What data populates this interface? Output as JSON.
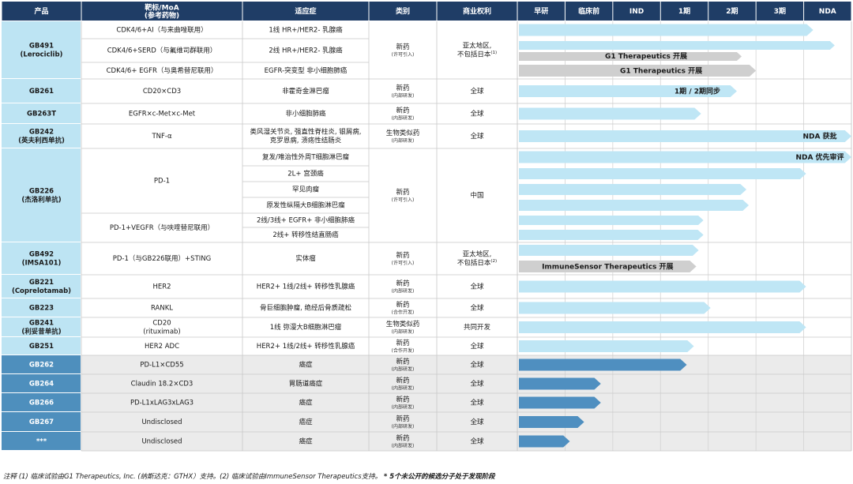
{
  "colors": {
    "header": "#1f3d66",
    "product_light": "#bde4f3",
    "product_dark": "#4e8fbd",
    "row_alt": "#ebebeb",
    "bar_light": "#bfe6f5",
    "bar_dark": "#4f8fc0",
    "bar_gray": "#cfcfcf"
  },
  "headers": {
    "product": "产品",
    "target": "靶标/MoA",
    "target_sub": "(参考药物)",
    "indication": "适应症",
    "category": "类别",
    "rights": "商业权利",
    "phases": [
      "早研",
      "临床前",
      "IND",
      "1期",
      "2期",
      "3期",
      "NDA"
    ]
  },
  "rows": [
    {
      "target": "CDK4/6+AI（与来曲唑联用）",
      "indication": "1线 HR+/HER2-  乳腺癌",
      "bar_end": 6.2,
      "bar": "light"
    },
    {
      "target": "CDK4/6+SERD（与氟维司群联用）",
      "indication": "2线 HR+/HER2-  乳腺癌",
      "bar_end": 6.65,
      "bar": "light",
      "bar2_end": 4.7,
      "bar2": "gray",
      "bar2_label": "G1 Therapeutics 开展"
    },
    {
      "target": "CDK4/6+ EGFR（与奥希替尼联用）",
      "indication": "EGFR-突变型 非小细胞肺癌",
      "bar_end": 5.0,
      "bar": "gray",
      "bar_label": "G1 Therapeutics 开展"
    },
    {
      "target": "CD20×CD3",
      "indication": "非霍奇金淋巴瘤",
      "bar_end": 4.6,
      "bar": "light",
      "bar_label": "1期 / 2期同步"
    },
    {
      "target": "EGFR×c-Met×c-Met",
      "indication": "非小细胞肺癌",
      "bar_end": 3.85,
      "bar": "light"
    },
    {
      "target": "TNF-α",
      "indication_lines": [
        "类风湿关节炎, 强直性脊柱炎, 银屑病,",
        "克罗恩病, 溃疡性结肠炎"
      ],
      "bar_end": 7.0,
      "bar": "light",
      "bar_label": "NDA 获批"
    },
    {
      "target": "",
      "indication": "复发/难治性外周T细胞淋巴瘤",
      "bar_end": 7.0,
      "bar": "light",
      "bar_label": "NDA 优先审评"
    },
    {
      "target": "",
      "indication": "2L+ 宫颈癌",
      "bar_end": 6.05,
      "bar": "light"
    },
    {
      "target": "",
      "indication": "罕见肉瘤",
      "bar_end": 4.8,
      "bar": "light"
    },
    {
      "target": "",
      "indication": "原发性纵隔大B细胞淋巴瘤",
      "bar_end": 4.85,
      "bar": "light"
    },
    {
      "target": "",
      "indication": "2线/3线+ EGFR+ 非小细胞肺癌",
      "bar_end": 3.9,
      "bar": "light"
    },
    {
      "target": "",
      "indication": "2线+ 转移性结直肠癌",
      "bar_end": 3.9,
      "bar": "light"
    },
    {
      "target": "",
      "indication": "",
      "bar_end": 3.8,
      "bar": "light"
    },
    {
      "target": "",
      "indication": "",
      "bar_end": 3.75,
      "bar": "gray",
      "bar_label": "ImmuneSensor Therapeutics 开展"
    },
    {
      "target": "HER2",
      "indication": "HER2+ 1线/2线+ 转移性乳腺癌",
      "bar_end": 6.05,
      "bar": "light"
    },
    {
      "target": "RANKL",
      "indication": "骨巨细胞肿瘤, 绝经后骨质疏松",
      "bar_end": 4.05,
      "bar": "light"
    },
    {
      "target_lines": [
        "CD20",
        "(rituximab)"
      ],
      "indication": "1线 弥漫大B细胞淋巴瘤",
      "bar_end": 6.05,
      "bar": "light"
    },
    {
      "target": "HER2  ADC",
      "indication": "HER2+ 1线/2线+ 转移性乳腺癌",
      "bar_end": 3.7,
      "bar": "light"
    },
    {
      "target": "PD-L1×CD55",
      "indication": "癌症",
      "bar_end": 3.55,
      "bar": "dark"
    },
    {
      "target": "Claudin 18.2×CD3",
      "indication": "胃肠道癌症",
      "bar_end": 1.75,
      "bar": "dark"
    },
    {
      "target": "PD-L1xLAG3xLAG3",
      "indication": "癌症",
      "bar_end": 1.75,
      "bar": "dark"
    },
    {
      "target": "Undisclosed",
      "indication": "癌症",
      "bar_end": 1.4,
      "bar": "dark"
    },
    {
      "target": "Undisclosed",
      "indication": "癌症",
      "bar_end": 1.1,
      "bar": "dark"
    }
  ],
  "products": [
    {
      "lines": [
        "GB491",
        "(Lerociclib)"
      ],
      "rows": [
        0,
        2
      ],
      "style": "light"
    },
    {
      "lines": [
        "GB261"
      ],
      "rows": [
        3,
        3
      ],
      "style": "light"
    },
    {
      "lines": [
        "GB263T"
      ],
      "rows": [
        4,
        4
      ],
      "style": "light"
    },
    {
      "lines": [
        "GB242",
        "(英夫利西单抗)"
      ],
      "rows": [
        5,
        5
      ],
      "style": "light"
    },
    {
      "lines": [
        "GB226",
        "(杰洛利单抗)"
      ],
      "rows": [
        6,
        11
      ],
      "style": "light"
    },
    {
      "lines": [
        "GB492",
        "(IMSA101)"
      ],
      "rows": [
        12,
        13
      ],
      "style": "light"
    },
    {
      "lines": [
        "GB221",
        "(Coprelotamab)"
      ],
      "rows": [
        14,
        14
      ],
      "style": "light"
    },
    {
      "lines": [
        "GB223"
      ],
      "rows": [
        15,
        15
      ],
      "style": "light"
    },
    {
      "lines": [
        "GB241",
        "(利妥昔单抗)"
      ],
      "rows": [
        16,
        16
      ],
      "style": "light"
    },
    {
      "lines": [
        "GB251"
      ],
      "rows": [
        17,
        17
      ],
      "style": "light"
    },
    {
      "lines": [
        "GB262"
      ],
      "rows": [
        18,
        18
      ],
      "style": "dark"
    },
    {
      "lines": [
        "GB264"
      ],
      "rows": [
        19,
        19
      ],
      "style": "dark"
    },
    {
      "lines": [
        "GB266"
      ],
      "rows": [
        20,
        20
      ],
      "style": "dark"
    },
    {
      "lines": [
        "GB267"
      ],
      "rows": [
        21,
        21
      ],
      "style": "dark"
    },
    {
      "lines": [
        "***"
      ],
      "rows": [
        22,
        22
      ],
      "style": "dark"
    }
  ],
  "merged_targets": [
    {
      "text": "PD-1",
      "rows": [
        6,
        9
      ]
    },
    {
      "text": "PD-1+VEGFR（与呋喹替尼联用）",
      "rows": [
        10,
        11
      ]
    },
    {
      "text": "PD-1（与GB226联用）+STING",
      "rows": [
        12,
        13
      ]
    }
  ],
  "merged_indications": [
    {
      "text": "实体瘤",
      "rows": [
        12,
        13
      ]
    }
  ],
  "categories": [
    {
      "main": "新药",
      "sub": "(许可引入)",
      "rows": [
        0,
        2
      ]
    },
    {
      "main": "新药",
      "sub": "(内部研发)",
      "rows": [
        3,
        3
      ]
    },
    {
      "main": "新药",
      "sub": "(内部研发)",
      "rows": [
        4,
        4
      ]
    },
    {
      "main": "生物类似药",
      "sub": "(内部研发)",
      "rows": [
        5,
        5
      ]
    },
    {
      "main": "新药",
      "sub": "(许可引入)",
      "rows": [
        6,
        11
      ]
    },
    {
      "main": "新药",
      "sub": "(许可引入)",
      "rows": [
        12,
        13
      ]
    },
    {
      "main": "新药",
      "sub": "(内部研发)",
      "rows": [
        14,
        14
      ]
    },
    {
      "main": "新药",
      "sub": "(合作开发)",
      "rows": [
        15,
        15
      ]
    },
    {
      "main": "生物类似药",
      "sub": "(内部研发)",
      "rows": [
        16,
        16
      ]
    },
    {
      "main": "新药",
      "sub": "(合作开发)",
      "rows": [
        17,
        17
      ]
    },
    {
      "main": "新药",
      "sub": "(内部研发)",
      "rows": [
        18,
        18
      ]
    },
    {
      "main": "新药",
      "sub": "(内部研发)",
      "rows": [
        19,
        19
      ]
    },
    {
      "main": "新药",
      "sub": "(内部研发)",
      "rows": [
        20,
        20
      ]
    },
    {
      "main": "新药",
      "sub": "(内部研发)",
      "rows": [
        21,
        21
      ]
    },
    {
      "main": "新药",
      "sub": "(内部研发)",
      "rows": [
        22,
        22
      ]
    }
  ],
  "rights": [
    {
      "lines": [
        "亚太地区,",
        "不包括日本"
      ],
      "sup": "(1)",
      "rows": [
        0,
        2
      ]
    },
    {
      "lines": [
        "全球"
      ],
      "rows": [
        3,
        3
      ]
    },
    {
      "lines": [
        "全球"
      ],
      "rows": [
        4,
        4
      ]
    },
    {
      "lines": [
        "全球"
      ],
      "rows": [
        5,
        5
      ]
    },
    {
      "lines": [
        "中国"
      ],
      "rows": [
        6,
        11
      ]
    },
    {
      "lines": [
        "亚太地区,",
        "不包括日本"
      ],
      "sup": "(2)",
      "rows": [
        12,
        13
      ]
    },
    {
      "lines": [
        "全球"
      ],
      "rows": [
        14,
        14
      ]
    },
    {
      "lines": [
        "全球"
      ],
      "rows": [
        15,
        15
      ]
    },
    {
      "lines": [
        "共同开发"
      ],
      "rows": [
        16,
        16
      ]
    },
    {
      "lines": [
        "全球"
      ],
      "rows": [
        17,
        17
      ]
    },
    {
      "lines": [
        "全球"
      ],
      "rows": [
        18,
        18
      ]
    },
    {
      "lines": [
        "全球"
      ],
      "rows": [
        19,
        19
      ]
    },
    {
      "lines": [
        "全球"
      ],
      "rows": [
        20,
        20
      ]
    },
    {
      "lines": [
        "全球"
      ],
      "rows": [
        21,
        21
      ]
    },
    {
      "lines": [
        "全球"
      ],
      "rows": [
        22,
        22
      ]
    }
  ],
  "footnote": {
    "main": "注释 (1) 临床试验由G1 Therapeutics, Inc. (纳斯达克：GTHX）支持。(2) 临床试验由ImmuneSensor Therapeutics支持。",
    "bold": "* 5个未公开的候选分子处于发现阶段"
  }
}
